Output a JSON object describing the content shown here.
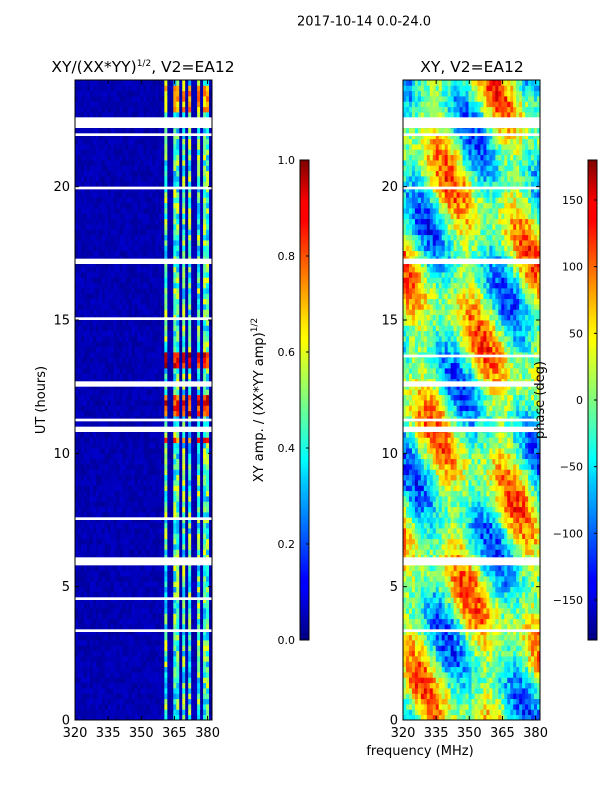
{
  "figure": {
    "suptitle": "2017-10-14 0.0-24.0",
    "xlabel_shared": "frequency (MHz)"
  },
  "chart_data": [
    {
      "type": "heatmap",
      "title": "XY/(XX*YY)",
      "title_sup": "1/2",
      "title_suffix": ", V2=EA12",
      "xlabel": "",
      "ylabel": "UT (hours)",
      "xlim": [
        320,
        382
      ],
      "ylim": [
        0,
        24
      ],
      "xticks": [
        320,
        335,
        350,
        365,
        380
      ],
      "yticks": [
        0,
        5,
        10,
        15,
        20
      ],
      "colormap": "jet",
      "colorbar": {
        "label": "XY amp. / (XX*YY amp)",
        "label_sup": "1/2",
        "range": [
          0.0,
          1.0
        ],
        "ticks": [
          "0.0",
          "0.2",
          "0.4",
          "0.6",
          "0.8",
          "1.0"
        ],
        "tick_values": [
          0.0,
          0.2,
          0.4,
          0.6,
          0.8,
          1.0
        ]
      },
      "value_range": [
        0.0,
        1.0
      ],
      "background_value": 0.05,
      "bright_channel_ranges_mhz": [
        [
          360,
          362
        ],
        [
          364,
          367
        ],
        [
          368,
          370
        ],
        [
          371,
          373
        ],
        [
          375,
          377
        ],
        [
          378,
          380
        ]
      ],
      "bright_channel_value": 0.45,
      "hot_periods_ut": [
        {
          "start": 13.1,
          "end": 13.9,
          "value": 0.9
        },
        {
          "start": 11.5,
          "end": 12.1,
          "value": 0.85
        },
        {
          "start": 22.8,
          "end": 23.8,
          "value": 0.7
        },
        {
          "start": 10.3,
          "end": 10.6,
          "value": 0.8
        }
      ],
      "flagged_ut_bands": [
        [
          22.2,
          22.6
        ],
        [
          5.8,
          6.1
        ],
        [
          17.1,
          17.3
        ],
        [
          12.5,
          12.7
        ],
        [
          10.8,
          11.0
        ],
        [
          11.2,
          11.3
        ],
        [
          7.5,
          7.6
        ],
        [
          4.5,
          4.6
        ],
        [
          3.3,
          3.4
        ],
        [
          15.0,
          15.1
        ],
        [
          19.9,
          20.0
        ],
        [
          21.9,
          22.0
        ]
      ]
    },
    {
      "type": "heatmap",
      "title": "XY, V2=EA12",
      "xlabel": "frequency (MHz)",
      "ylabel": "",
      "xlim": [
        320,
        382
      ],
      "ylim": [
        0,
        24
      ],
      "xticks": [
        320,
        335,
        350,
        365,
        380
      ],
      "yticks": [
        0,
        5,
        10,
        15,
        20
      ],
      "colormap": "jet",
      "colorbar": {
        "label": "phase (deg)",
        "range": [
          -180,
          180
        ],
        "ticks": [
          "150",
          "100",
          "50",
          "0",
          "−50",
          "−100",
          "−150"
        ],
        "tick_values": [
          150,
          100,
          50,
          0,
          -50,
          -100,
          -150
        ]
      },
      "value_range": [
        -180,
        180
      ],
      "flagged_ut_bands": [
        [
          22.2,
          22.6
        ],
        [
          5.8,
          6.1
        ],
        [
          17.1,
          17.3
        ],
        [
          12.5,
          12.7
        ],
        [
          10.8,
          11.0
        ],
        [
          11.2,
          11.3
        ],
        [
          13.6,
          13.7
        ],
        [
          3.3,
          3.4
        ],
        [
          19.9,
          20.0
        ],
        [
          21.9,
          22.0
        ]
      ]
    }
  ]
}
